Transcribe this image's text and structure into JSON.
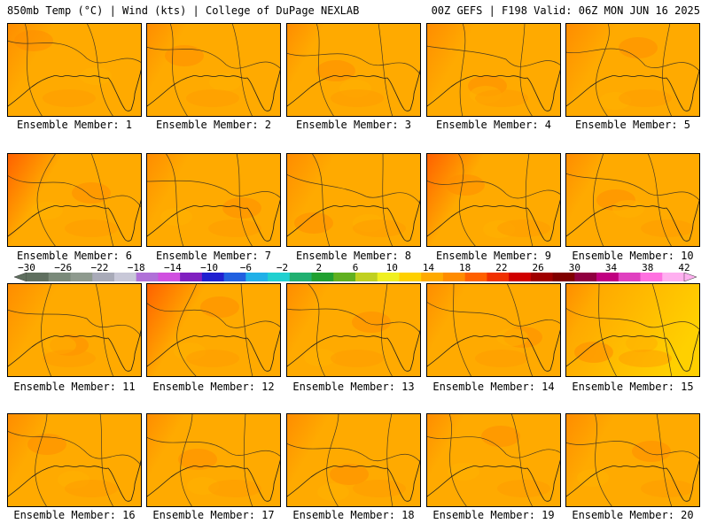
{
  "header": {
    "title": "850mb Temp (°C) | Wind (kts) | College of DuPage NEXLAB",
    "run_info": "00Z GEFS | F198 Valid: 06Z MON JUN 16 2025"
  },
  "panels": [
    {
      "label": "Ensemble Member: 1",
      "warmth": 0.45
    },
    {
      "label": "Ensemble Member: 2",
      "warmth": 0.35
    },
    {
      "label": "Ensemble Member: 3",
      "warmth": 0.3
    },
    {
      "label": "Ensemble Member: 4",
      "warmth": 0.5
    },
    {
      "label": "Ensemble Member: 5",
      "warmth": 0.55
    },
    {
      "label": "Ensemble Member: 6",
      "warmth": 0.6
    },
    {
      "label": "Ensemble Member: 7",
      "warmth": 0.4
    },
    {
      "label": "Ensemble Member: 8",
      "warmth": 0.5
    },
    {
      "label": "Ensemble Member: 9",
      "warmth": 0.65
    },
    {
      "label": "Ensemble Member: 10",
      "warmth": 0.35
    },
    {
      "label": "Ensemble Member: 11",
      "warmth": 0.55
    },
    {
      "label": "Ensemble Member: 12",
      "warmth": 0.7
    },
    {
      "label": "Ensemble Member: 13",
      "warmth": 0.4
    },
    {
      "label": "Ensemble Member: 14",
      "warmth": 0.35
    },
    {
      "label": "Ensemble Member: 15",
      "warmth": 0.25
    },
    {
      "label": "Ensemble Member: 16",
      "warmth": 0.4
    },
    {
      "label": "Ensemble Member: 17",
      "warmth": 0.3
    },
    {
      "label": "Ensemble Member: 18",
      "warmth": 0.4
    },
    {
      "label": "Ensemble Member: 19",
      "warmth": 0.3
    },
    {
      "label": "Ensemble Member: 20",
      "warmth": 0.5
    }
  ],
  "colorbar": {
    "tick_labels": [
      "−30",
      "−26",
      "−22",
      "−18",
      "−14",
      "−10",
      "−6",
      "−2",
      "2",
      "6",
      "10",
      "14",
      "18",
      "22",
      "26",
      "30",
      "34",
      "38",
      "42"
    ],
    "colors": [
      "#5f6f5f",
      "#7a8a7a",
      "#8e9a8e",
      "#a8aab8",
      "#c8c8d8",
      "#b070d8",
      "#d050e0",
      "#8020c0",
      "#2020d0",
      "#2060e0",
      "#20b0e8",
      "#20d0d0",
      "#20b070",
      "#20a030",
      "#60b020",
      "#c0d020",
      "#f0f020",
      "#ffd000",
      "#ffaa00",
      "#ff8c00",
      "#ff6000",
      "#f03000",
      "#d00000",
      "#a00000",
      "#800000",
      "#900040",
      "#c00080",
      "#e040c0",
      "#ff70e0",
      "#ffb0f0"
    ]
  }
}
